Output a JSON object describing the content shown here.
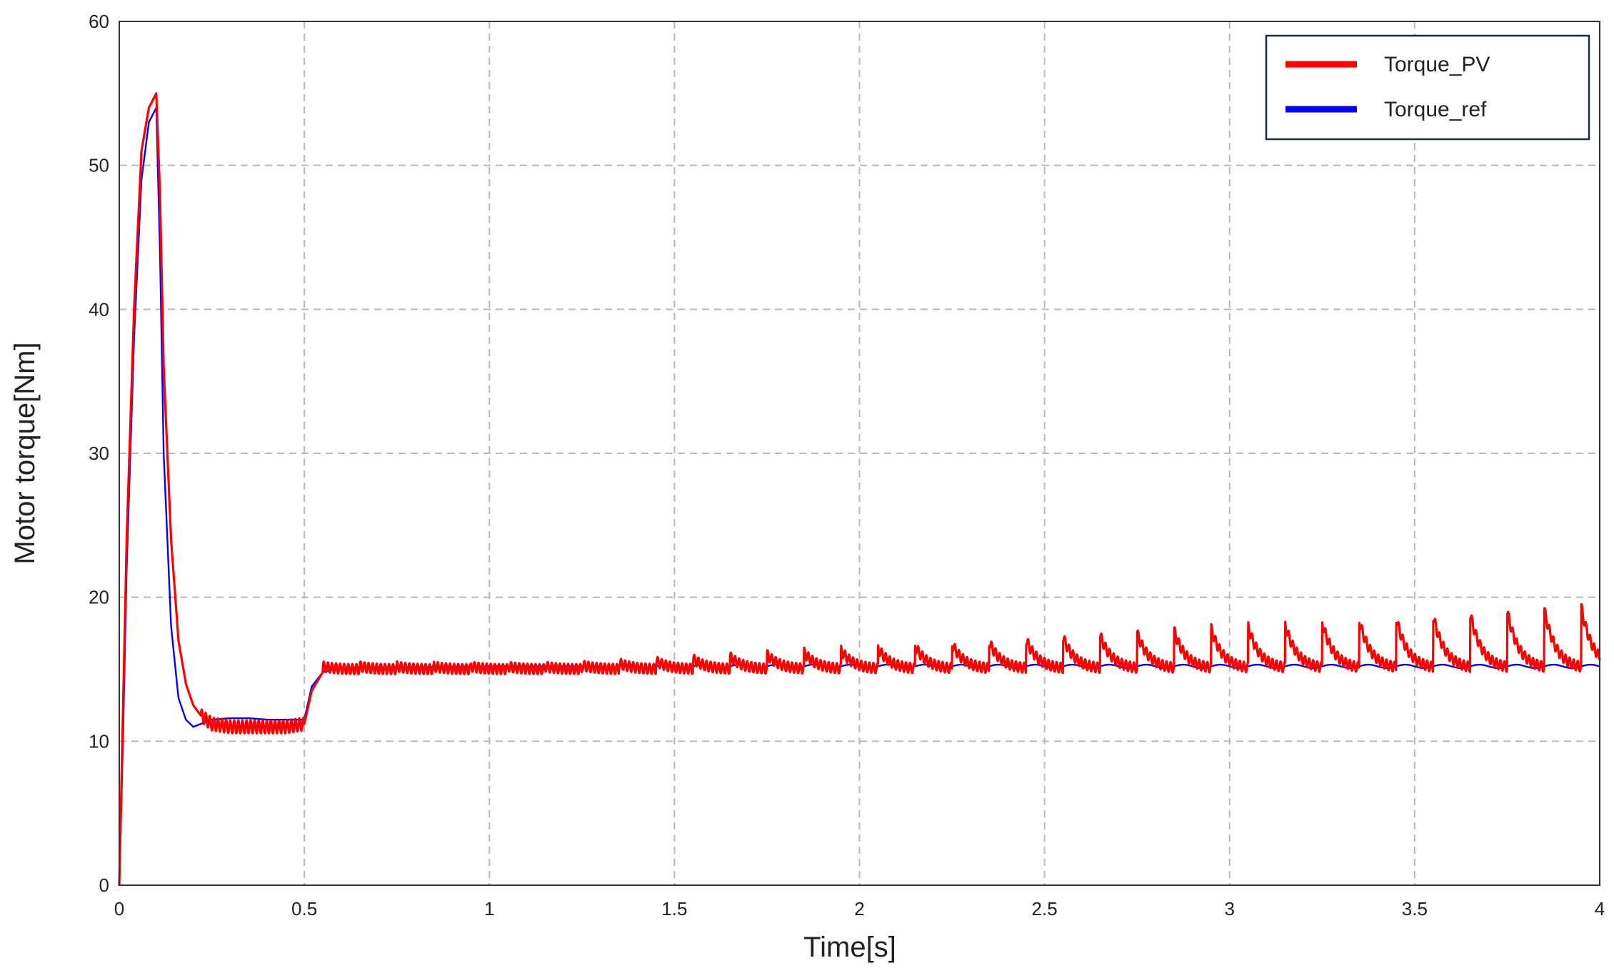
{
  "chart_data": {
    "type": "line",
    "title": "",
    "xlabel": "Time[s]",
    "ylabel": "Motor torque[Nm]",
    "xlim": [
      0,
      4
    ],
    "ylim": [
      0,
      60
    ],
    "x_ticks": [
      0,
      0.5,
      1,
      1.5,
      2,
      2.5,
      3,
      3.5,
      4
    ],
    "x_tick_labels": [
      "0",
      "0.5",
      "1",
      "1.5",
      "2",
      "2.5",
      "3",
      "3.5",
      "4"
    ],
    "y_ticks": [
      0,
      10,
      20,
      30,
      40,
      50,
      60
    ],
    "y_tick_labels": [
      "0",
      "10",
      "20",
      "30",
      "40",
      "50",
      "60"
    ],
    "grid": true,
    "legend": {
      "position": "top-right"
    },
    "series": [
      {
        "name": "Torque_PV",
        "color": "#ff0000",
        "x": [
          0,
          0.01,
          0.02,
          0.04,
          0.06,
          0.08,
          0.1,
          0.11,
          0.12,
          0.14,
          0.16,
          0.18,
          0.2,
          0.22,
          0.25,
          0.3,
          0.35,
          0.4,
          0.45,
          0.5,
          0.52,
          0.55,
          0.6,
          0.8,
          1.0,
          1.2,
          1.4,
          1.6,
          1.8,
          2.0,
          2.2,
          2.4,
          2.6,
          2.8,
          3.0,
          3.2,
          3.4,
          3.6,
          3.8,
          3.93,
          4.0
        ],
        "values": [
          0,
          12,
          24,
          40,
          51,
          54,
          55,
          48,
          36,
          24,
          17,
          14,
          12.5,
          11.8,
          11.2,
          11,
          11,
          11,
          11,
          11.2,
          13.5,
          14.8,
          15,
          15.1,
          15.2,
          15.3,
          15.5,
          15.7,
          15.9,
          16.2,
          16.6,
          17,
          17.3,
          17.6,
          17.9,
          18.2,
          18.5,
          18.8,
          19,
          19.3,
          15.5
        ]
      },
      {
        "name": "Torque_ref",
        "color": "#0000ff",
        "x": [
          0,
          0.01,
          0.02,
          0.04,
          0.06,
          0.08,
          0.1,
          0.11,
          0.12,
          0.14,
          0.16,
          0.18,
          0.2,
          0.22,
          0.25,
          0.3,
          0.35,
          0.4,
          0.45,
          0.5,
          0.52,
          0.55,
          0.6,
          1.0,
          1.5,
          2.0,
          2.5,
          3.0,
          3.5,
          4.0
        ],
        "values": [
          0,
          10,
          22,
          38,
          49,
          53,
          54,
          44,
          30,
          18,
          13,
          11.5,
          11,
          11.2,
          11.5,
          11.6,
          11.6,
          11.5,
          11.5,
          11.5,
          13.8,
          14.8,
          15.1,
          15.2,
          15.2,
          15.2,
          15.2,
          15.2,
          15.2,
          15.2
        ]
      }
    ]
  }
}
